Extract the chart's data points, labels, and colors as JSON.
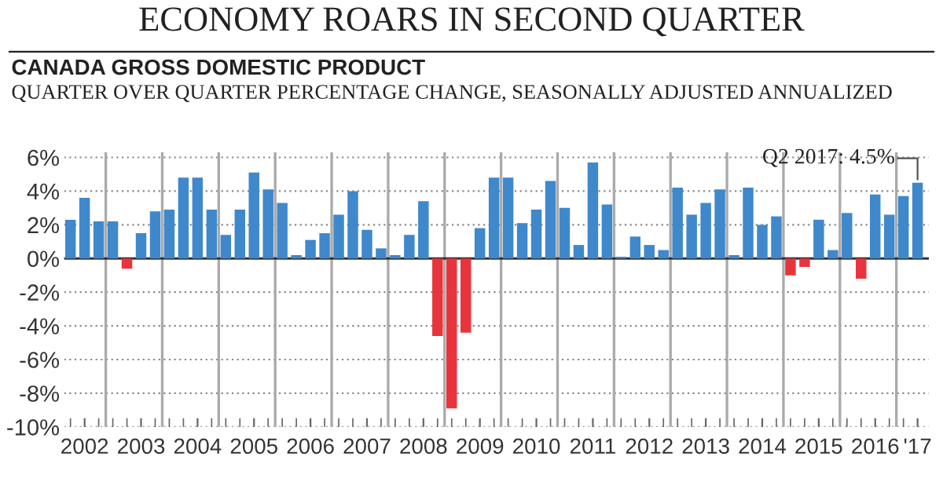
{
  "chart_data": {
    "type": "bar",
    "title": "ECONOMY ROARS IN SECOND QUARTER",
    "subtitle": "CANADA GROSS DOMESTIC PRODUCT",
    "annotations": [
      "QUARTER OVER QUARTER PERCENTAGE CHANGE, SEASONALLY ADJUSTED ANNUALIZED",
      "Q2 2017: 4.5%"
    ],
    "categories": [
      null,
      "2002",
      null,
      null,
      null,
      "2003",
      null,
      null,
      null,
      "2004",
      null,
      null,
      null,
      "2005",
      null,
      null,
      null,
      "2006",
      null,
      null,
      null,
      "2007",
      null,
      null,
      null,
      "2008",
      null,
      null,
      null,
      "2009",
      null,
      null,
      null,
      "2010",
      null,
      null,
      null,
      "2011",
      null,
      null,
      null,
      "2012",
      null,
      null,
      null,
      "2013",
      null,
      null,
      null,
      "2014",
      null,
      null,
      null,
      "2015",
      null,
      null,
      null,
      "2016",
      null,
      null,
      "'17"
    ],
    "values": [
      2.3,
      3.6,
      2.2,
      2.2,
      -0.6,
      1.5,
      2.8,
      2.9,
      4.8,
      4.8,
      2.9,
      1.4,
      2.9,
      5.1,
      4.1,
      3.3,
      0.2,
      1.1,
      1.5,
      2.6,
      4.0,
      1.7,
      0.6,
      0.2,
      1.4,
      3.4,
      -4.6,
      -8.9,
      -4.4,
      1.8,
      4.8,
      4.8,
      2.1,
      2.9,
      4.6,
      3.0,
      0.8,
      5.7,
      3.2,
      0.1,
      1.3,
      0.8,
      0.5,
      4.2,
      2.6,
      3.3,
      4.1,
      0.2,
      4.2,
      2.0,
      2.5,
      -1.0,
      -0.5,
      2.3,
      0.5,
      2.7,
      -1.2,
      3.8,
      2.6,
      3.7,
      4.5
    ],
    "colors": [
      "#3f88cc",
      "#3f88cc",
      "#3f88cc",
      "#3f88cc",
      "#e8343c",
      "#3f88cc",
      "#3f88cc",
      "#3f88cc",
      "#3f88cc",
      "#3f88cc",
      "#3f88cc",
      "#3f88cc",
      "#3f88cc",
      "#3f88cc",
      "#3f88cc",
      "#3f88cc",
      "#3f88cc",
      "#3f88cc",
      "#3f88cc",
      "#3f88cc",
      "#3f88cc",
      "#3f88cc",
      "#3f88cc",
      "#3f88cc",
      "#3f88cc",
      "#3f88cc",
      "#e8343c",
      "#e8343c",
      "#e8343c",
      "#3f88cc",
      "#3f88cc",
      "#3f88cc",
      "#3f88cc",
      "#3f88cc",
      "#3f88cc",
      "#3f88cc",
      "#3f88cc",
      "#3f88cc",
      "#3f88cc",
      "#3f88cc",
      "#3f88cc",
      "#3f88cc",
      "#3f88cc",
      "#3f88cc",
      "#3f88cc",
      "#3f88cc",
      "#3f88cc",
      "#3f88cc",
      "#3f88cc",
      "#3f88cc",
      "#3f88cc",
      "#e8343c",
      "#e8343c",
      "#3f88cc",
      "#3f88cc",
      "#3f88cc",
      "#e8343c",
      "#3f88cc",
      "#3f88cc",
      "#3f88cc",
      "#3f88cc"
    ],
    "ylim": [
      -10,
      6.3
    ],
    "yticks": [
      {
        "value": -10,
        "label": "-10%"
      },
      {
        "value": -8,
        "label": "-8%"
      },
      {
        "value": -6,
        "label": "-6%"
      },
      {
        "value": -4,
        "label": "-4%"
      },
      {
        "value": -2,
        "label": "-2%"
      },
      {
        "value": 0,
        "label": "0%"
      },
      {
        "value": 2,
        "label": "2%"
      },
      {
        "value": 4,
        "label": "4%"
      },
      {
        "value": 6,
        "label": "6%"
      }
    ],
    "grid": true
  }
}
